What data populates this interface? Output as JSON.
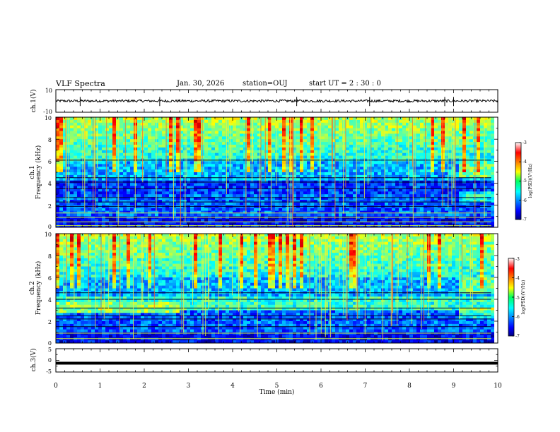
{
  "header": {
    "title": "VLF Spectra",
    "date": "Jan. 30, 2026",
    "station": "station=OUJ",
    "start": "start UT =  2 : 30 : 0"
  },
  "chart_data": [
    {
      "type": "line",
      "panel": "ch1-waveform",
      "ylabel": "ch.1(V)",
      "ylim": [
        -10,
        10
      ],
      "yticks": [
        "10",
        "-10"
      ],
      "xlim": [
        0,
        10
      ],
      "baseline": 0,
      "spikes_min": [
        0.55,
        2.35,
        5.45,
        7.1,
        8.8,
        9.0
      ]
    },
    {
      "type": "heatmap",
      "panel": "ch1-spectrogram",
      "ylabel_line1": "ch.1",
      "ylabel_line2": "Frequency (kHz)",
      "ylim": [
        0,
        10
      ],
      "yticks": [
        "0",
        "2",
        "4",
        "6",
        "8",
        "10"
      ],
      "xlim": [
        0,
        10
      ],
      "colorbar_label": "log(PSD)(V²/Hz)",
      "colorbar_ticks": [
        "-3",
        "-4",
        "-5",
        "-6",
        "-7"
      ],
      "clim": [
        -7,
        -3
      ]
    },
    {
      "type": "heatmap",
      "panel": "ch2-spectrogram",
      "ylabel_line1": "ch.2",
      "ylabel_line2": "Frequency (kHz)",
      "ylim": [
        0,
        10
      ],
      "yticks": [
        "0",
        "2",
        "4",
        "6",
        "8",
        "10"
      ],
      "xlim": [
        0,
        10
      ],
      "colorbar_label": "log(PSD)(V²/Hz)",
      "colorbar_ticks": [
        "-3",
        "-4",
        "-5",
        "-6",
        "-7"
      ],
      "clim": [
        -7,
        -3
      ]
    },
    {
      "type": "line",
      "panel": "ch3-waveform",
      "ylabel": "ch.3(V)",
      "ylim": [
        -5,
        5
      ],
      "yticks": [
        "5",
        "0",
        "-5"
      ],
      "xlim": [
        0,
        10
      ],
      "constant_value": -1.2
    }
  ],
  "xaxis": {
    "label": "Time (min)",
    "ticks": [
      "0",
      "1",
      "2",
      "3",
      "4",
      "5",
      "6",
      "7",
      "8",
      "9",
      "10"
    ]
  }
}
